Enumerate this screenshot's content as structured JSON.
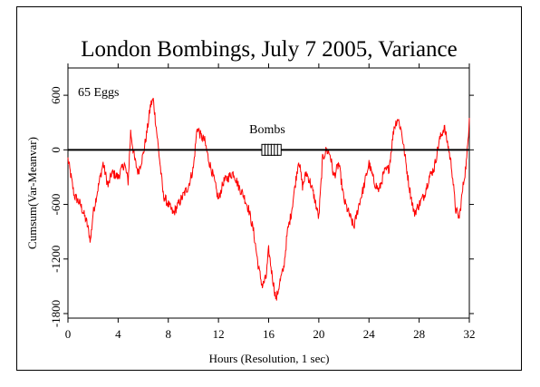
{
  "chart_data": {
    "type": "line",
    "title": "London Bombings, July 7 2005, Variance",
    "xlabel": "Hours (Resolution, 1 sec)",
    "ylabel": "Cumsum(Var-Meanvar)",
    "annotation": "65 Eggs",
    "event_label": "Bombs",
    "xlim": [
      0,
      32
    ],
    "ylim": [
      -1850,
      900
    ],
    "x_ticks": [
      0,
      4,
      8,
      12,
      16,
      20,
      24,
      28,
      32
    ],
    "y_ticks": [
      600,
      0,
      -600,
      -1200,
      -1800
    ],
    "reference_line_y": 0,
    "event_hours": [
      15.6,
      15.85,
      16.1,
      16.35,
      16.6,
      16.85
    ],
    "series": [
      {
        "color": "#ff0000",
        "x": [
          0,
          0.5,
          1,
          1.5,
          1.8,
          2,
          2.5,
          2.8,
          3.2,
          3.5,
          4,
          4.5,
          4.8,
          5,
          5.3,
          5.6,
          6,
          6.3,
          6.6,
          6.8,
          7,
          7.3,
          7.6,
          8,
          8.4,
          8.8,
          9.2,
          9.6,
          10,
          10.3,
          10.6,
          10.9,
          11.2,
          11.6,
          12,
          12.4,
          12.8,
          13.2,
          13.6,
          14,
          14.4,
          14.8,
          15.2,
          15.5,
          15.8,
          16,
          16.3,
          16.6,
          16.9,
          17.2,
          17.5,
          17.8,
          18.1,
          18.4,
          18.7,
          19,
          19.3,
          19.6,
          20,
          20.3,
          20.6,
          20.9,
          21.2,
          21.6,
          22,
          22.4,
          22.8,
          23.2,
          23.6,
          24,
          24.4,
          24.8,
          25.2,
          25.6,
          26,
          26.3,
          26.6,
          26.9,
          27.2,
          27.6,
          28,
          28.4,
          28.8,
          29.2,
          29.6,
          30,
          30.3,
          30.6,
          30.9,
          31.2,
          31.5,
          31.8,
          32
        ],
        "y": [
          -100,
          -500,
          -600,
          -800,
          -1000,
          -700,
          -350,
          -150,
          -400,
          -250,
          -300,
          -150,
          -350,
          200,
          -100,
          -250,
          -50,
          200,
          500,
          550,
          300,
          -100,
          -500,
          -600,
          -700,
          -600,
          -500,
          -400,
          -200,
          250,
          150,
          100,
          -100,
          -300,
          -550,
          -350,
          -300,
          -250,
          -400,
          -500,
          -650,
          -900,
          -1300,
          -1500,
          -1400,
          -1100,
          -1400,
          -1650,
          -1450,
          -1300,
          -900,
          -700,
          -400,
          -100,
          -400,
          -250,
          -350,
          -500,
          -750,
          -100,
          0,
          -50,
          -300,
          -150,
          -550,
          -700,
          -850,
          -600,
          -400,
          -150,
          -350,
          -450,
          -250,
          -200,
          250,
          350,
          200,
          -100,
          -400,
          -700,
          -600,
          -500,
          -300,
          -200,
          100,
          250,
          50,
          -200,
          -650,
          -750,
          -400,
          -100,
          350
        ]
      }
    ],
    "grid": false
  }
}
